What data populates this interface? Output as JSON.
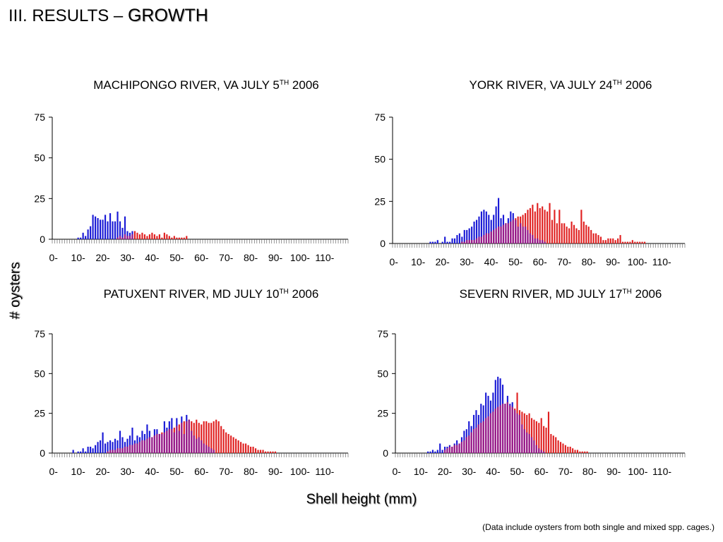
{
  "slide": {
    "title_prefix": "III. RESULTS – ",
    "title_accent": "GROWTH",
    "y_axis_title": "# oysters",
    "x_axis_title": "Shell height (mm)",
    "footnote": "(Data include oysters from both single and mixed spp. cages.)"
  },
  "colors": {
    "series_a": "#1a1ad6",
    "series_b": "#e02020",
    "overlap": "#8a1aa0",
    "axis": "#000000"
  },
  "chart_data": [
    {
      "type": "bar",
      "title": {
        "main": "MACHIPONGO RIVER, VA JULY 5",
        "sup": "TH",
        "year": " 2006"
      },
      "x_tick_labels": [
        "0-",
        "10-",
        "20-",
        "30-",
        "40-",
        "50-",
        "60-",
        "70-",
        "80-",
        "90-",
        "100-",
        "110-"
      ],
      "ylim": [
        0,
        75
      ],
      "y_ticks": [
        0,
        25,
        50,
        75
      ],
      "bin_count": 120,
      "series": [
        {
          "color": "blue",
          "start_bin": 10,
          "values": [
            1,
            1,
            4,
            2,
            6,
            8,
            15,
            14,
            13,
            12,
            12,
            15,
            11,
            16,
            11,
            11,
            17,
            11,
            7,
            14,
            5,
            4,
            5
          ]
        },
        {
          "color": "red",
          "start_bin": 26,
          "values": [
            1,
            2,
            1,
            3,
            2,
            2,
            3,
            5,
            4,
            3,
            4,
            3,
            2,
            3,
            4,
            3,
            2,
            3,
            1,
            4,
            3,
            2,
            1,
            2,
            1,
            1,
            1,
            1,
            2
          ]
        }
      ]
    },
    {
      "type": "bar",
      "title": {
        "main": "YORK RIVER, VA JULY 24",
        "sup": "TH",
        "year": " 2006"
      },
      "x_tick_labels": [
        "0-",
        "10-",
        "20-",
        "30-",
        "40-",
        "50-",
        "60-",
        "70-",
        "80-",
        "90-",
        "100-",
        "110-"
      ],
      "ylim": [
        0,
        75
      ],
      "y_ticks": [
        0,
        25,
        50,
        75
      ],
      "bin_count": 120,
      "series": [
        {
          "color": "blue",
          "start_bin": 15,
          "values": [
            1,
            1,
            1,
            2,
            0,
            1,
            4,
            1,
            1,
            3,
            3,
            5,
            6,
            4,
            8,
            8,
            9,
            10,
            13,
            14,
            16,
            19,
            20,
            19,
            17,
            14,
            17,
            22,
            27,
            15,
            17,
            12,
            15,
            19,
            18,
            14,
            10,
            12,
            10,
            10,
            8,
            6,
            5,
            3,
            3,
            2,
            2,
            1
          ]
        },
        {
          "color": "red",
          "start_bin": 28,
          "values": [
            1,
            1,
            2,
            2,
            2,
            2,
            3,
            4,
            4,
            5,
            6,
            6,
            7,
            8,
            9,
            10,
            10,
            11,
            12,
            12,
            13,
            14,
            15,
            16,
            16,
            17,
            18,
            20,
            21,
            23,
            19,
            24,
            21,
            22,
            20,
            19,
            24,
            14,
            20,
            12,
            20,
            12,
            12,
            10,
            9,
            13,
            11,
            9,
            8,
            20,
            13,
            11,
            10,
            8,
            6,
            6,
            5,
            4,
            2,
            2,
            3,
            3,
            3,
            2,
            3,
            5,
            1,
            1,
            1,
            1,
            2,
            1,
            1,
            1,
            1,
            1
          ]
        }
      ]
    },
    {
      "type": "bar",
      "title": {
        "main": "PATUXENT RIVER, MD JULY 10",
        "sup": "TH",
        "year": " 2006"
      },
      "x_tick_labels": [
        "0-",
        "10-",
        "20-",
        "30-",
        "40-",
        "50-",
        "60-",
        "70-",
        "80-",
        "90-",
        "100-",
        "110-"
      ],
      "ylim": [
        0,
        75
      ],
      "y_ticks": [
        0,
        25,
        50,
        75
      ],
      "bin_count": 120,
      "series": [
        {
          "color": "blue",
          "start_bin": 8,
          "values": [
            2,
            0,
            1,
            1,
            3,
            1,
            4,
            4,
            3,
            5,
            7,
            8,
            13,
            6,
            7,
            8,
            7,
            9,
            8,
            14,
            10,
            7,
            9,
            11,
            16,
            8,
            11,
            10,
            14,
            12,
            18,
            14,
            10,
            15,
            15,
            12,
            12,
            20,
            16,
            20,
            22,
            13,
            22,
            14,
            23,
            12,
            24,
            21,
            14,
            11,
            9,
            10,
            8,
            6,
            5,
            4,
            3,
            2
          ]
        },
        {
          "color": "red",
          "start_bin": 22,
          "values": [
            1,
            2,
            2,
            2,
            3,
            3,
            3,
            4,
            4,
            5,
            5,
            6,
            6,
            7,
            8,
            8,
            9,
            10,
            10,
            11,
            12,
            12,
            13,
            13,
            14,
            15,
            15,
            16,
            17,
            18,
            19,
            20,
            20,
            21,
            20,
            19,
            21,
            19,
            18,
            20,
            20,
            19,
            19,
            20,
            21,
            20,
            17,
            15,
            13,
            12,
            11,
            10,
            9,
            8,
            7,
            6,
            6,
            5,
            4,
            4,
            3,
            2,
            2,
            2,
            1,
            1,
            1,
            1,
            1
          ]
        }
      ]
    },
    {
      "type": "bar",
      "title": {
        "main": "SEVERN RIVER, MD JULY 17",
        "sup": "TH",
        "year": " 2006"
      },
      "x_tick_labels": [
        "0-",
        "10-",
        "20-",
        "30-",
        "40-",
        "50-",
        "60-",
        "70-",
        "80-",
        "90-",
        "100-",
        "110-"
      ],
      "ylim": [
        0,
        75
      ],
      "y_ticks": [
        0,
        25,
        50,
        75
      ],
      "bin_count": 120,
      "series": [
        {
          "color": "blue",
          "start_bin": 13,
          "values": [
            1,
            1,
            2,
            1,
            2,
            6,
            2,
            4,
            4,
            5,
            4,
            6,
            8,
            6,
            10,
            14,
            15,
            20,
            17,
            24,
            27,
            24,
            31,
            30,
            38,
            36,
            33,
            38,
            46,
            48,
            47,
            43,
            31,
            36,
            31,
            32,
            27,
            25,
            24,
            18,
            15,
            13,
            12,
            10,
            8,
            5,
            3,
            2,
            1
          ]
        },
        {
          "color": "red",
          "start_bin": 20,
          "values": [
            2,
            3,
            4,
            4,
            5,
            5,
            6,
            7,
            8,
            10,
            11,
            13,
            15,
            16,
            18,
            19,
            20,
            22,
            23,
            25,
            26,
            28,
            29,
            30,
            31,
            31,
            32,
            30,
            29,
            28,
            38,
            27,
            26,
            25,
            24,
            25,
            22,
            21,
            20,
            19,
            22,
            17,
            16,
            26,
            12,
            11,
            10,
            8,
            7,
            6,
            5,
            4,
            4,
            3,
            2,
            2,
            1,
            1,
            1,
            1
          ]
        }
      ]
    }
  ]
}
